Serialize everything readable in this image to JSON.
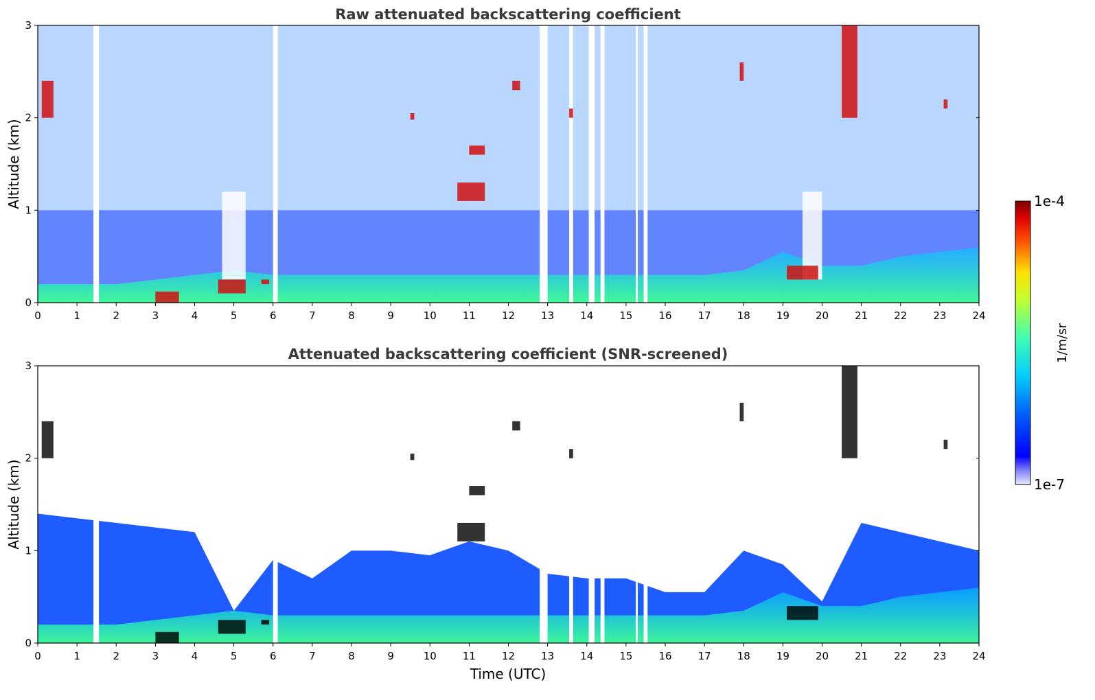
{
  "chart_data": [
    {
      "type": "heatmap",
      "title": "Raw attenuated backscattering coefficient",
      "xlabel": "",
      "ylabel": "Altitude (km)",
      "xlim": [
        0,
        24
      ],
      "ylim": [
        0,
        3
      ],
      "x_ticks": [
        0,
        1,
        2,
        3,
        4,
        5,
        6,
        7,
        8,
        9,
        10,
        11,
        12,
        13,
        14,
        15,
        16,
        17,
        18,
        19,
        20,
        21,
        22,
        23,
        24
      ],
      "y_ticks": [
        0,
        1,
        2,
        3
      ],
      "colorscale": "jet",
      "color_range": [
        "1e-7",
        "1e-4"
      ],
      "boundary_layer_top_km": [
        0.2,
        0.2,
        0.2,
        0.25,
        0.3,
        0.35,
        0.3,
        0.3,
        0.3,
        0.3,
        0.3,
        0.3,
        0.3,
        0.3,
        0.3,
        0.3,
        0.3,
        0.3,
        0.35,
        0.55,
        0.4,
        0.4,
        0.5,
        0.55,
        0.6
      ],
      "no_signal_gaps_utc": [
        [
          1.42,
          1.56
        ],
        [
          6.0,
          6.12
        ],
        [
          12.8,
          13.0
        ],
        [
          13.55,
          13.65
        ],
        [
          14.05,
          14.2
        ],
        [
          14.35,
          14.45
        ],
        [
          15.25,
          15.3
        ],
        [
          15.45,
          15.55
        ]
      ],
      "rain_columns_utc": [
        [
          4.7,
          5.3
        ],
        [
          19.5,
          20.0
        ]
      ],
      "high_backscatter_features": [
        {
          "t": [
            3.0,
            3.6
          ],
          "z": [
            0.0,
            0.12
          ]
        },
        {
          "t": [
            4.6,
            5.3
          ],
          "z": [
            0.1,
            0.25
          ]
        },
        {
          "t": [
            5.7,
            5.9
          ],
          "z": [
            0.2,
            0.25
          ]
        },
        {
          "t": [
            0.1,
            0.4
          ],
          "z": [
            2.0,
            2.4
          ]
        },
        {
          "t": [
            9.5,
            9.6
          ],
          "z": [
            1.98,
            2.05
          ]
        },
        {
          "t": [
            10.7,
            11.4
          ],
          "z": [
            1.1,
            1.3
          ]
        },
        {
          "t": [
            11.0,
            11.4
          ],
          "z": [
            1.6,
            1.7
          ]
        },
        {
          "t": [
            12.1,
            12.3
          ],
          "z": [
            2.3,
            2.4
          ]
        },
        {
          "t": [
            13.55,
            13.65
          ],
          "z": [
            2.0,
            2.1
          ]
        },
        {
          "t": [
            17.9,
            18.0
          ],
          "z": [
            2.4,
            2.6
          ]
        },
        {
          "t": [
            19.1,
            19.9
          ],
          "z": [
            0.25,
            0.4
          ]
        },
        {
          "t": [
            20.5,
            20.9
          ],
          "z": [
            2.0,
            3.0
          ]
        },
        {
          "t": [
            23.1,
            23.2
          ],
          "z": [
            2.1,
            2.2
          ]
        }
      ]
    },
    {
      "type": "heatmap",
      "title": "Attenuated backscattering coefficient (SNR-screened)",
      "xlabel": "Time (UTC)",
      "ylabel": "Altitude (km)",
      "xlim": [
        0,
        24
      ],
      "ylim": [
        0,
        3
      ],
      "x_ticks": [
        0,
        1,
        2,
        3,
        4,
        5,
        6,
        7,
        8,
        9,
        10,
        11,
        12,
        13,
        14,
        15,
        16,
        17,
        18,
        19,
        20,
        21,
        22,
        23,
        24
      ],
      "y_ticks": [
        0,
        1,
        2,
        3
      ],
      "colorscale": "jet",
      "color_range": [
        "1e-7",
        "1e-4"
      ],
      "screened_signal_top_km": [
        1.4,
        1.35,
        1.3,
        1.25,
        1.2,
        0.35,
        0.9,
        0.7,
        1.0,
        1.0,
        0.95,
        1.1,
        1.0,
        0.75,
        0.7,
        0.7,
        0.55,
        0.55,
        1.0,
        0.85,
        0.45,
        1.3,
        1.2,
        1.1,
        1.0
      ]
    }
  ],
  "colorbar": {
    "label": "1/m/sr",
    "max_label": "1e-4",
    "min_label": "1e-7"
  }
}
